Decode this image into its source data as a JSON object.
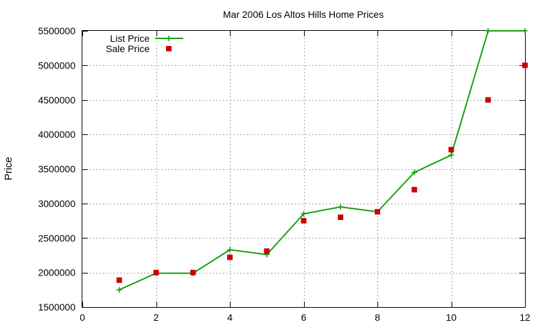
{
  "chart_data": {
    "type": "line",
    "title": "Mar 2006 Los Altos Hills Home Prices",
    "xlabel": "",
    "ylabel": "Price",
    "xlim": [
      0,
      12
    ],
    "ylim": [
      1500000,
      5500000
    ],
    "x_ticks": [
      0,
      2,
      4,
      6,
      8,
      10,
      12
    ],
    "y_ticks": [
      1500000,
      2000000,
      2500000,
      3000000,
      3500000,
      4000000,
      4500000,
      5000000,
      5500000
    ],
    "grid": true,
    "legend_position": "top-left",
    "series": [
      {
        "name": "List Price",
        "style": "line-with-plus-markers",
        "color": "#13a10e",
        "x": [
          1,
          2,
          3,
          4,
          5,
          6,
          7,
          8,
          9,
          10,
          11,
          12
        ],
        "values": [
          1750000,
          1990000,
          1990000,
          2330000,
          2260000,
          2850000,
          2950000,
          2880000,
          3450000,
          3700000,
          5500000,
          5500000
        ]
      },
      {
        "name": "Sale Price",
        "style": "square-markers",
        "color": "#cc0000",
        "x": [
          1,
          2,
          3,
          4,
          5,
          6,
          7,
          8,
          9,
          10,
          11,
          12
        ],
        "values": [
          1890000,
          2000000,
          2000000,
          2220000,
          2310000,
          2750000,
          2800000,
          2880000,
          3200000,
          3780000,
          4500000,
          5000000
        ]
      }
    ]
  }
}
